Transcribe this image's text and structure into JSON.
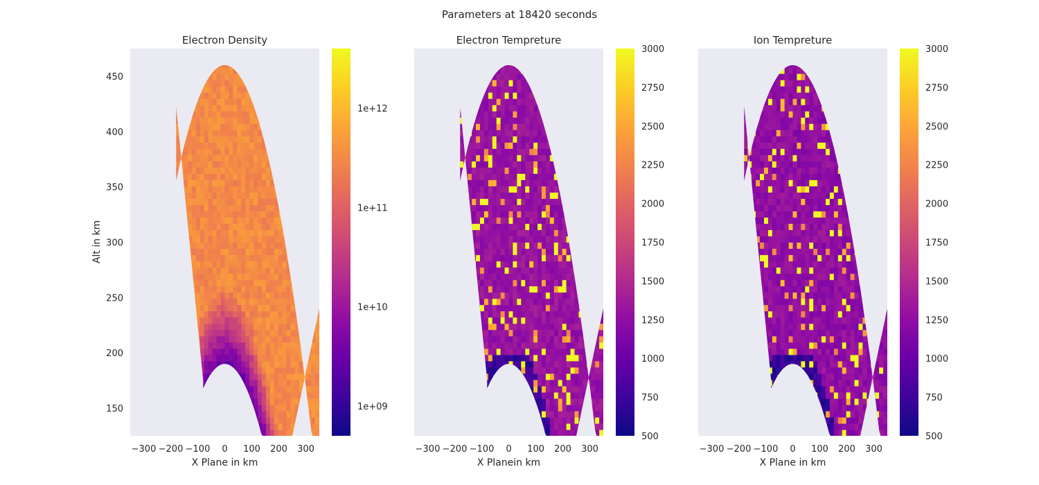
{
  "figure": {
    "suptitle": "Parameters at 18420 seconds"
  },
  "colors": {
    "panel_bg": "#eaeaf2",
    "colormap": [
      "#0d0887",
      "#3e049c",
      "#6a00a8",
      "#900da4",
      "#b12a90",
      "#cc4778",
      "#e16462",
      "#f2844b",
      "#fca636",
      "#fcce25",
      "#f0f921"
    ]
  },
  "chart_data": [
    {
      "type": "heatmap",
      "title": "Electron Density",
      "xlabel": "X Plane in km",
      "ylabel": "Alt in km",
      "xlim": [
        -350,
        350
      ],
      "ylim": [
        125,
        475
      ],
      "xticks": [
        "−300",
        "−200",
        "−100",
        "0",
        "100",
        "200",
        "300"
      ],
      "yticks": [
        "150",
        "200",
        "250",
        "300",
        "350",
        "400",
        "450"
      ],
      "colorbar": {
        "scale": "log",
        "range": [
          500000000,
          4000000000000
        ],
        "ticks": [
          "1e+09",
          "1e+10",
          "1e+11",
          "1e+12"
        ],
        "tick_values": [
          1000000000,
          10000000000,
          100000000000,
          1000000000000
        ]
      },
      "field": {
        "kind": "density",
        "typical": 0.72,
        "low_edge_value": 0.2
      }
    },
    {
      "type": "heatmap",
      "title": "Electron Tempreture",
      "xlabel": "X Planein km",
      "ylabel": "",
      "xlim": [
        -350,
        350
      ],
      "ylim": [
        125,
        475
      ],
      "xticks": [
        "−300",
        "−200",
        "−100",
        "0",
        "100",
        "200",
        "300"
      ],
      "yticks": [],
      "colorbar": {
        "scale": "linear",
        "range": [
          500,
          3000
        ],
        "ticks": [
          "500",
          "750",
          "1000",
          "1250",
          "1500",
          "1750",
          "2000",
          "2250",
          "2500",
          "2750",
          "3000"
        ],
        "tick_values": [
          500,
          750,
          1000,
          1250,
          1500,
          1750,
          2000,
          2250,
          2500,
          2750,
          3000
        ]
      },
      "field": {
        "kind": "temperature",
        "typical": 1300,
        "hot_spot_value": 3000
      }
    },
    {
      "type": "heatmap",
      "title": "Ion Tempreture",
      "xlabel": "X Plane in km",
      "ylabel": "",
      "xlim": [
        -350,
        350
      ],
      "ylim": [
        125,
        475
      ],
      "xticks": [
        "−300",
        "−200",
        "−100",
        "0",
        "100",
        "200",
        "300"
      ],
      "yticks": [],
      "colorbar": {
        "scale": "linear",
        "range": [
          500,
          3000
        ],
        "ticks": [
          "500",
          "750",
          "1000",
          "1250",
          "1500",
          "1750",
          "2000",
          "2250",
          "2500",
          "2750",
          "3000"
        ],
        "tick_values": [
          500,
          750,
          1000,
          1250,
          1500,
          1750,
          2000,
          2250,
          2500,
          2750,
          3000
        ]
      },
      "field": {
        "kind": "temperature",
        "typical": 1250,
        "hot_spot_value": 3000
      }
    }
  ]
}
